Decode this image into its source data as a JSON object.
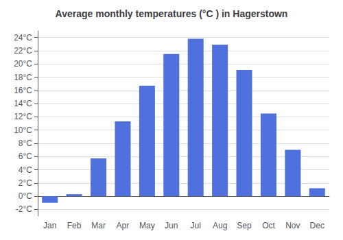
{
  "chart_data": {
    "type": "bar",
    "title": "Average monthly temperatures (°C ) in Hagerstown",
    "categories": [
      "Jan",
      "Feb",
      "Mar",
      "Apr",
      "May",
      "Jun",
      "Jul",
      "Aug",
      "Sep",
      "Oct",
      "Nov",
      "Dec"
    ],
    "values": [
      -1.0,
      0.3,
      5.7,
      11.3,
      16.7,
      21.5,
      23.8,
      22.9,
      19.1,
      12.5,
      7.0,
      1.2
    ],
    "ylim": [
      -3,
      25
    ],
    "yticks": [
      {
        "value": -2,
        "label": "-2°C"
      },
      {
        "value": 0,
        "label": "0°C"
      },
      {
        "value": 2,
        "label": "2°C"
      },
      {
        "value": 4,
        "label": "4°C"
      },
      {
        "value": 6,
        "label": "6°C"
      },
      {
        "value": 8,
        "label": "8°C"
      },
      {
        "value": 10,
        "label": "10°C"
      },
      {
        "value": 12,
        "label": "12°C"
      },
      {
        "value": 14,
        "label": "14°C"
      },
      {
        "value": 16,
        "label": "16°C"
      },
      {
        "value": 18,
        "label": "18°C"
      },
      {
        "value": 20,
        "label": "20°C"
      },
      {
        "value": 22,
        "label": "22°C"
      },
      {
        "value": 24,
        "label": "24°C"
      }
    ],
    "grid": true
  }
}
